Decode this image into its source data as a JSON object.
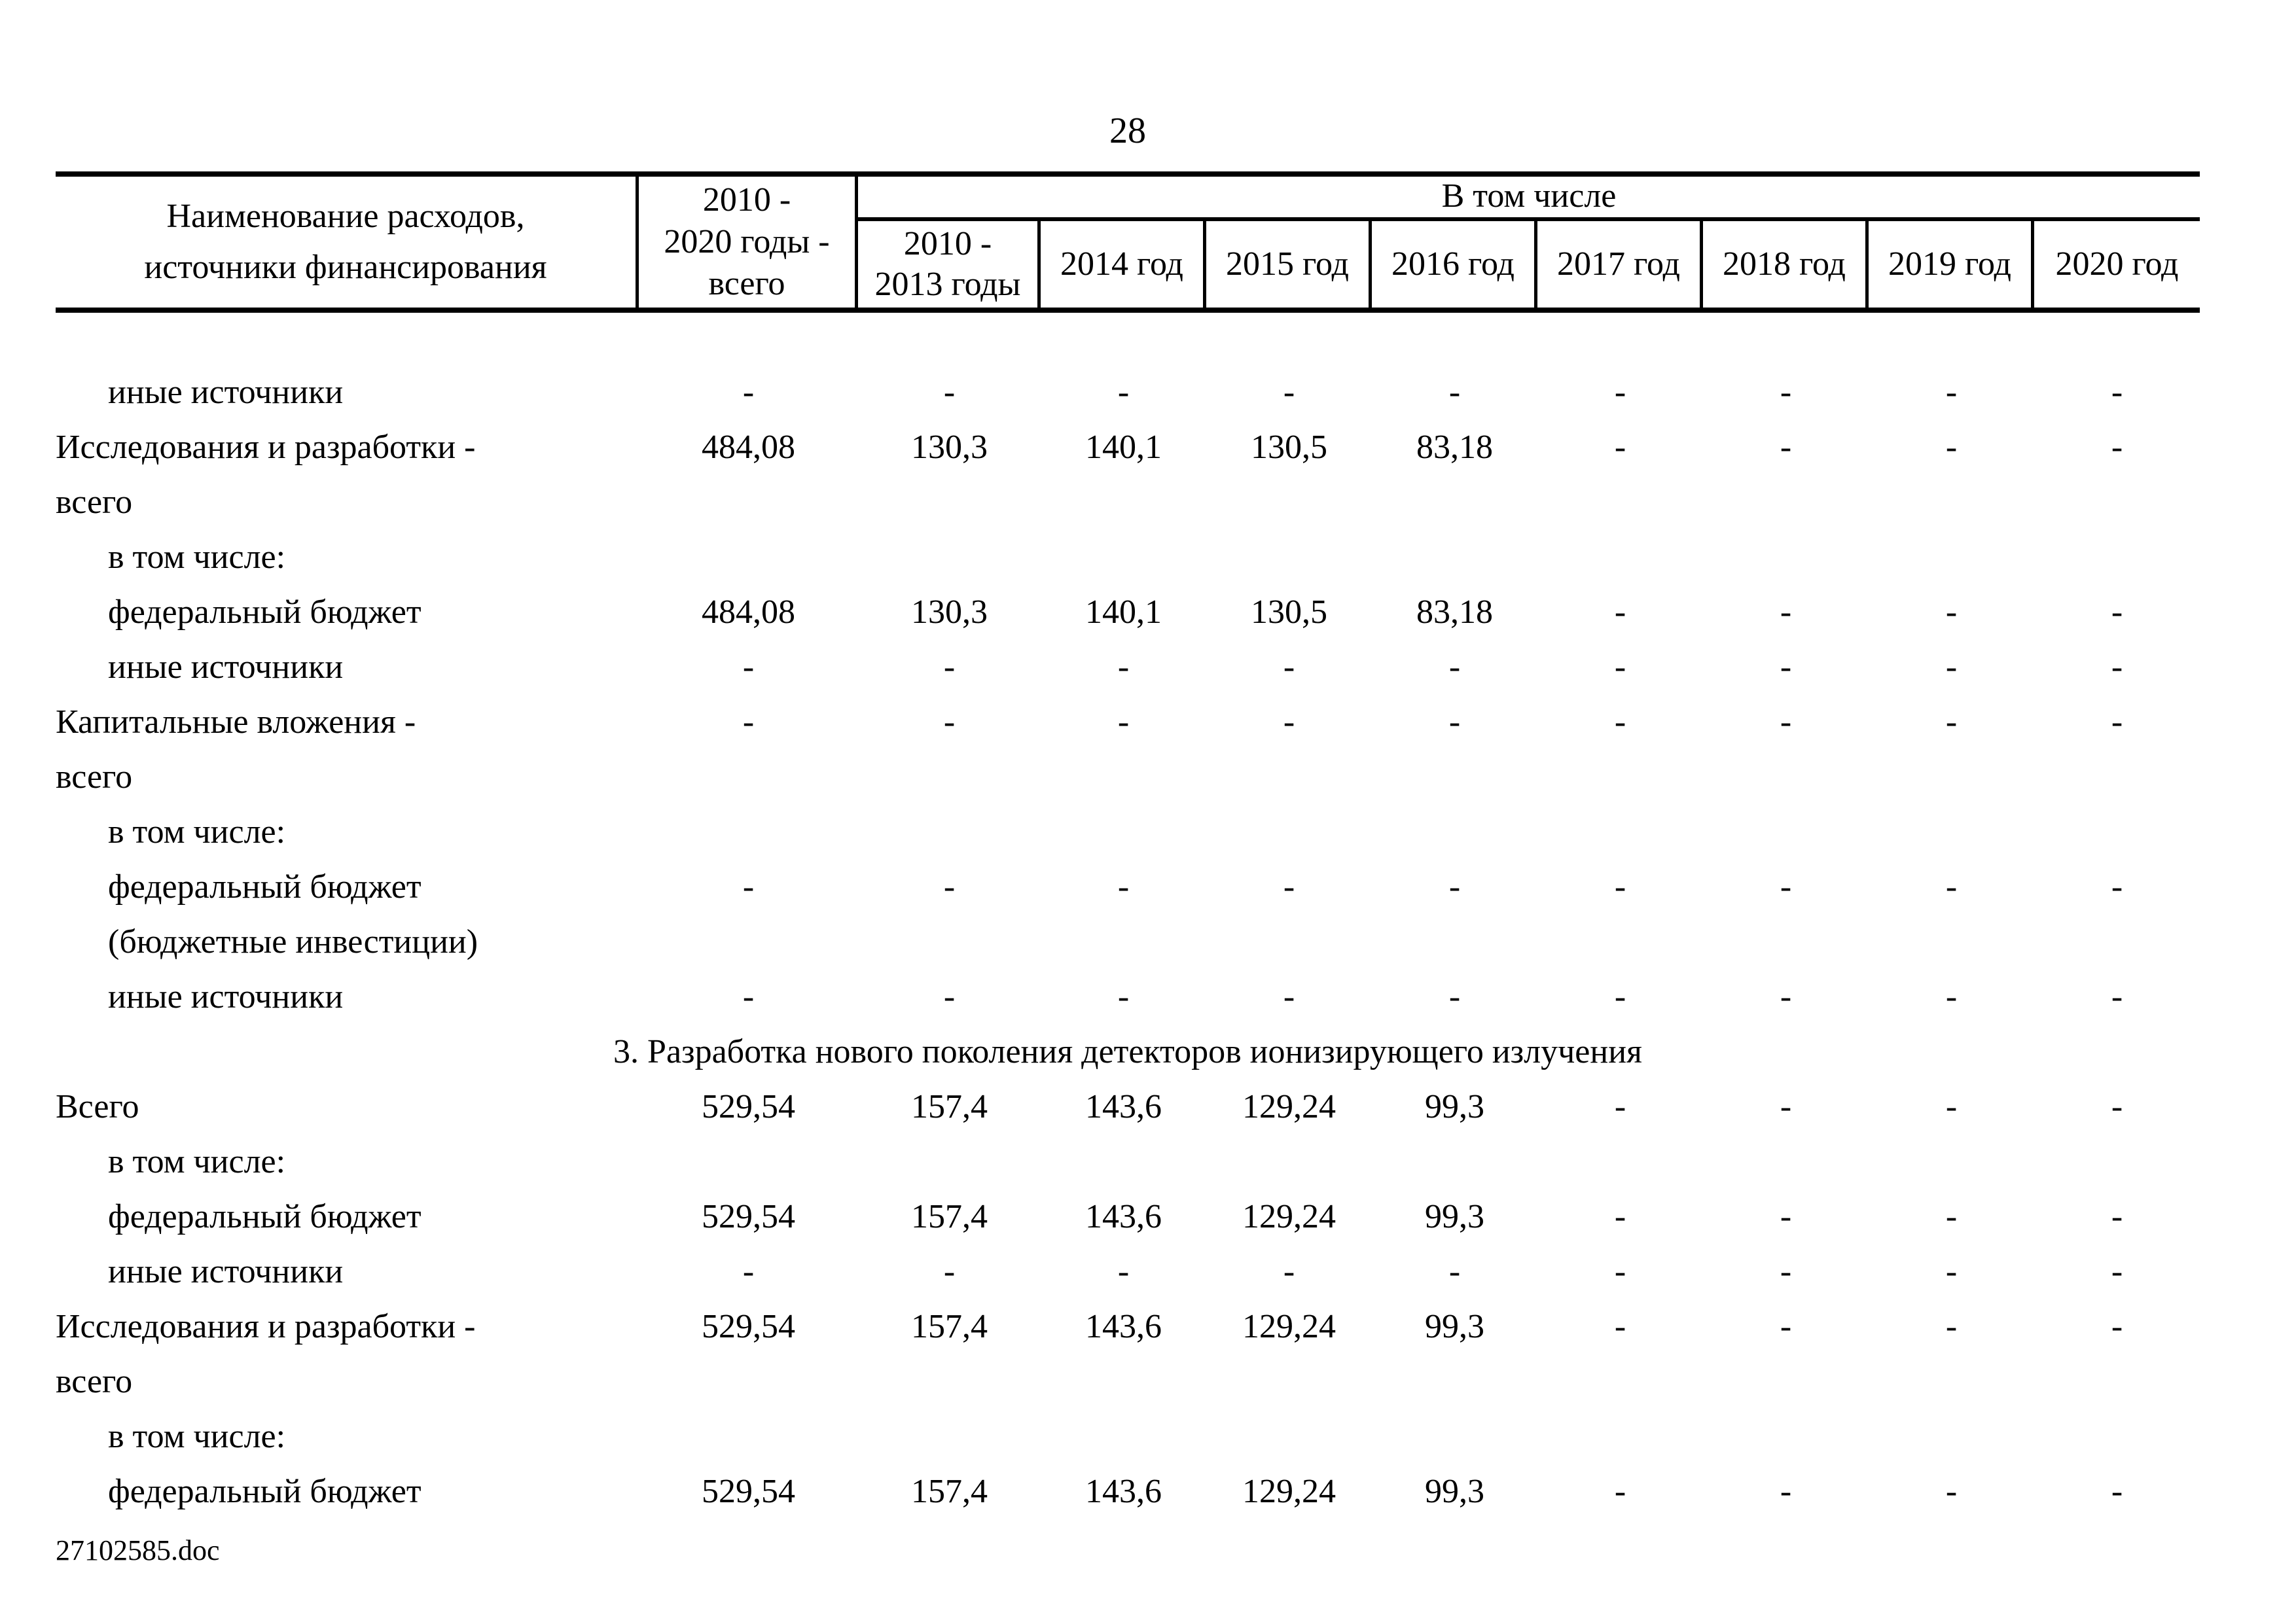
{
  "page": {
    "number": "28",
    "footer_filename": "27102585.doc"
  },
  "colors": {
    "background": "#ffffff",
    "text": "#000000",
    "border": "#000000"
  },
  "table": {
    "header": {
      "name_column": "Наименование расходов,\nисточники финансирования",
      "total_column": "2010 -\n2020 годы -\nвсего",
      "group_label": "В том числе",
      "year_columns": [
        "2010 -\n2013 годы",
        "2014 год",
        "2015 год",
        "2016 год",
        "2017 год",
        "2018 год",
        "2019 год",
        "2020 год"
      ]
    },
    "rows": [
      {
        "type": "data",
        "indent": 1,
        "label": "иные источники",
        "values": [
          "-",
          "-",
          "-",
          "-",
          "-",
          "-",
          "-",
          "-",
          "-"
        ]
      },
      {
        "type": "data",
        "indent": 0,
        "label": "Исследования и разработки -\nвсего",
        "values": [
          "484,08",
          "130,3",
          "140,1",
          "130,5",
          "83,18",
          "-",
          "-",
          "-",
          "-"
        ]
      },
      {
        "type": "note",
        "indent": 1,
        "label": "в том числе:",
        "values": []
      },
      {
        "type": "data",
        "indent": 1,
        "label": "федеральный бюджет",
        "values": [
          "484,08",
          "130,3",
          "140,1",
          "130,5",
          "83,18",
          "-",
          "-",
          "-",
          "-"
        ]
      },
      {
        "type": "data",
        "indent": 1,
        "label": "иные источники",
        "values": [
          "-",
          "-",
          "-",
          "-",
          "-",
          "-",
          "-",
          "-",
          "-"
        ]
      },
      {
        "type": "data",
        "indent": 0,
        "label": "Капитальные вложения -\nвсего",
        "values": [
          "-",
          "-",
          "-",
          "-",
          "-",
          "-",
          "-",
          "-",
          "-"
        ]
      },
      {
        "type": "note",
        "indent": 1,
        "label": "в том числе:",
        "values": []
      },
      {
        "type": "data",
        "indent": 1,
        "label": "федеральный бюджет\n(бюджетные инвестиции)",
        "values": [
          "-",
          "-",
          "-",
          "-",
          "-",
          "-",
          "-",
          "-",
          "-"
        ]
      },
      {
        "type": "data",
        "indent": 1,
        "label": "иные источники",
        "values": [
          "-",
          "-",
          "-",
          "-",
          "-",
          "-",
          "-",
          "-",
          "-"
        ]
      },
      {
        "type": "section",
        "label": "3. Разработка нового поколения детекторов ионизирующего излучения"
      },
      {
        "type": "data",
        "indent": 0,
        "label": "Всего",
        "values": [
          "529,54",
          "157,4",
          "143,6",
          "129,24",
          "99,3",
          "-",
          "-",
          "-",
          "-"
        ]
      },
      {
        "type": "note",
        "indent": 1,
        "label": "в том числе:",
        "values": []
      },
      {
        "type": "data",
        "indent": 1,
        "label": "федеральный бюджет",
        "values": [
          "529,54",
          "157,4",
          "143,6",
          "129,24",
          "99,3",
          "-",
          "-",
          "-",
          "-"
        ]
      },
      {
        "type": "data",
        "indent": 1,
        "label": "иные источники",
        "values": [
          "-",
          "-",
          "-",
          "-",
          "-",
          "-",
          "-",
          "-",
          "-"
        ]
      },
      {
        "type": "data",
        "indent": 0,
        "label": "Исследования и разработки -\nвсего",
        "values": [
          "529,54",
          "157,4",
          "143,6",
          "129,24",
          "99,3",
          "-",
          "-",
          "-",
          "-"
        ]
      },
      {
        "type": "note",
        "indent": 1,
        "label": "в том числе:",
        "values": []
      },
      {
        "type": "data",
        "indent": 1,
        "label": "федеральный бюджет",
        "values": [
          "529,54",
          "157,4",
          "143,6",
          "129,24",
          "99,3",
          "-",
          "-",
          "-",
          "-"
        ]
      }
    ]
  }
}
